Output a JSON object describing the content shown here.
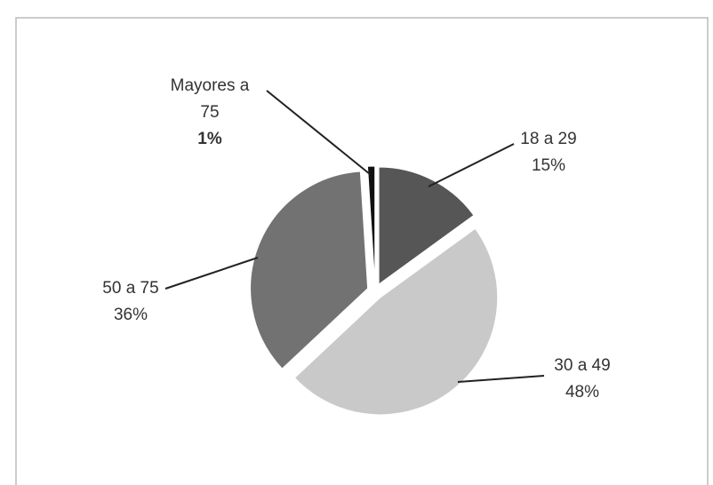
{
  "chart_data": {
    "type": "pie",
    "categories": [
      "18 a 29",
      "30 a 49",
      "50 a 75",
      "Mayores a 75"
    ],
    "values": [
      15,
      48,
      36,
      1
    ],
    "value_labels": [
      "15%",
      "48%",
      "36%",
      "1%"
    ],
    "colors": [
      "#565656",
      "#c9c9c9",
      "#727272",
      "#111111"
    ]
  }
}
